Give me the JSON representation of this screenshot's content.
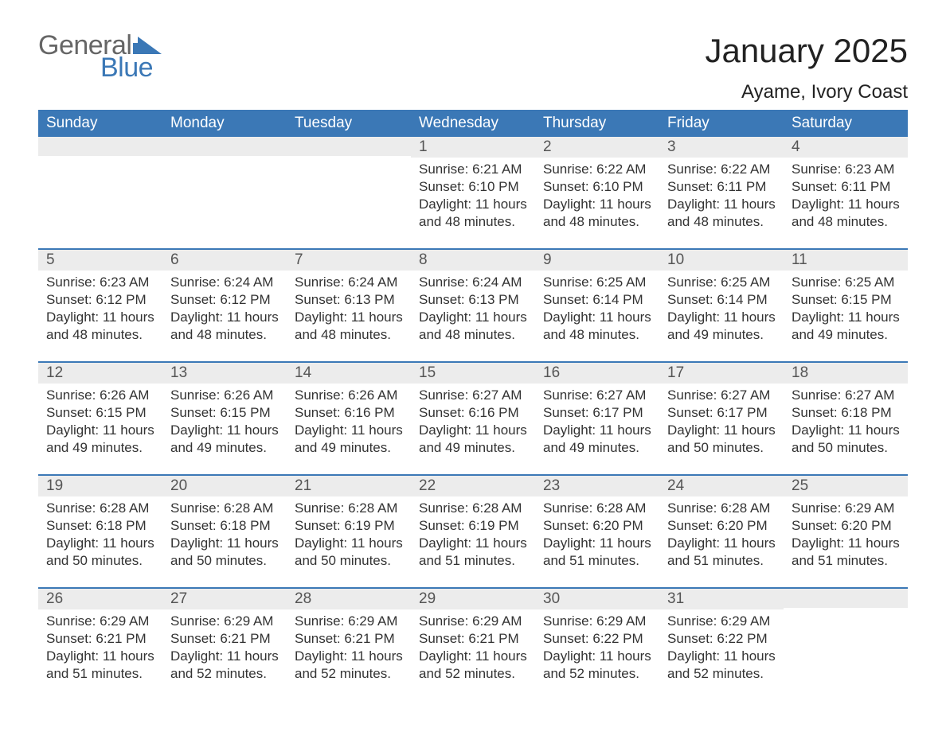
{
  "logo": {
    "text1": "General",
    "text2": "Blue",
    "flag_color": "#3b78b6",
    "text1_color": "#666666"
  },
  "title": "January 2025",
  "location": "Ayame, Ivory Coast",
  "weekday_labels": [
    "Sunday",
    "Monday",
    "Tuesday",
    "Wednesday",
    "Thursday",
    "Friday",
    "Saturday"
  ],
  "colors": {
    "header_bg": "#3b78b6",
    "header_fg": "#ffffff",
    "daynum_bg": "#ececec",
    "daynum_fg": "#555555",
    "body_fg": "#333333",
    "week_divider": "#3b78b6",
    "page_bg": "#ffffff"
  },
  "typography": {
    "title_fontsize": 42,
    "location_fontsize": 24,
    "weekday_fontsize": 19,
    "daynum_fontsize": 19,
    "body_fontsize": 17,
    "font_family": "Arial"
  },
  "label_prefixes": {
    "sunrise": "Sunrise: ",
    "sunset": "Sunset: ",
    "daylight": "Daylight: "
  },
  "weeks": [
    [
      {
        "n": "",
        "sunrise": "",
        "sunset": "",
        "daylight": ""
      },
      {
        "n": "",
        "sunrise": "",
        "sunset": "",
        "daylight": ""
      },
      {
        "n": "",
        "sunrise": "",
        "sunset": "",
        "daylight": ""
      },
      {
        "n": "1",
        "sunrise": "6:21 AM",
        "sunset": "6:10 PM",
        "daylight": "11 hours and 48 minutes."
      },
      {
        "n": "2",
        "sunrise": "6:22 AM",
        "sunset": "6:10 PM",
        "daylight": "11 hours and 48 minutes."
      },
      {
        "n": "3",
        "sunrise": "6:22 AM",
        "sunset": "6:11 PM",
        "daylight": "11 hours and 48 minutes."
      },
      {
        "n": "4",
        "sunrise": "6:23 AM",
        "sunset": "6:11 PM",
        "daylight": "11 hours and 48 minutes."
      }
    ],
    [
      {
        "n": "5",
        "sunrise": "6:23 AM",
        "sunset": "6:12 PM",
        "daylight": "11 hours and 48 minutes."
      },
      {
        "n": "6",
        "sunrise": "6:24 AM",
        "sunset": "6:12 PM",
        "daylight": "11 hours and 48 minutes."
      },
      {
        "n": "7",
        "sunrise": "6:24 AM",
        "sunset": "6:13 PM",
        "daylight": "11 hours and 48 minutes."
      },
      {
        "n": "8",
        "sunrise": "6:24 AM",
        "sunset": "6:13 PM",
        "daylight": "11 hours and 48 minutes."
      },
      {
        "n": "9",
        "sunrise": "6:25 AM",
        "sunset": "6:14 PM",
        "daylight": "11 hours and 48 minutes."
      },
      {
        "n": "10",
        "sunrise": "6:25 AM",
        "sunset": "6:14 PM",
        "daylight": "11 hours and 49 minutes."
      },
      {
        "n": "11",
        "sunrise": "6:25 AM",
        "sunset": "6:15 PM",
        "daylight": "11 hours and 49 minutes."
      }
    ],
    [
      {
        "n": "12",
        "sunrise": "6:26 AM",
        "sunset": "6:15 PM",
        "daylight": "11 hours and 49 minutes."
      },
      {
        "n": "13",
        "sunrise": "6:26 AM",
        "sunset": "6:15 PM",
        "daylight": "11 hours and 49 minutes."
      },
      {
        "n": "14",
        "sunrise": "6:26 AM",
        "sunset": "6:16 PM",
        "daylight": "11 hours and 49 minutes."
      },
      {
        "n": "15",
        "sunrise": "6:27 AM",
        "sunset": "6:16 PM",
        "daylight": "11 hours and 49 minutes."
      },
      {
        "n": "16",
        "sunrise": "6:27 AM",
        "sunset": "6:17 PM",
        "daylight": "11 hours and 49 minutes."
      },
      {
        "n": "17",
        "sunrise": "6:27 AM",
        "sunset": "6:17 PM",
        "daylight": "11 hours and 50 minutes."
      },
      {
        "n": "18",
        "sunrise": "6:27 AM",
        "sunset": "6:18 PM",
        "daylight": "11 hours and 50 minutes."
      }
    ],
    [
      {
        "n": "19",
        "sunrise": "6:28 AM",
        "sunset": "6:18 PM",
        "daylight": "11 hours and 50 minutes."
      },
      {
        "n": "20",
        "sunrise": "6:28 AM",
        "sunset": "6:18 PM",
        "daylight": "11 hours and 50 minutes."
      },
      {
        "n": "21",
        "sunrise": "6:28 AM",
        "sunset": "6:19 PM",
        "daylight": "11 hours and 50 minutes."
      },
      {
        "n": "22",
        "sunrise": "6:28 AM",
        "sunset": "6:19 PM",
        "daylight": "11 hours and 51 minutes."
      },
      {
        "n": "23",
        "sunrise": "6:28 AM",
        "sunset": "6:20 PM",
        "daylight": "11 hours and 51 minutes."
      },
      {
        "n": "24",
        "sunrise": "6:28 AM",
        "sunset": "6:20 PM",
        "daylight": "11 hours and 51 minutes."
      },
      {
        "n": "25",
        "sunrise": "6:29 AM",
        "sunset": "6:20 PM",
        "daylight": "11 hours and 51 minutes."
      }
    ],
    [
      {
        "n": "26",
        "sunrise": "6:29 AM",
        "sunset": "6:21 PM",
        "daylight": "11 hours and 51 minutes."
      },
      {
        "n": "27",
        "sunrise": "6:29 AM",
        "sunset": "6:21 PM",
        "daylight": "11 hours and 52 minutes."
      },
      {
        "n": "28",
        "sunrise": "6:29 AM",
        "sunset": "6:21 PM",
        "daylight": "11 hours and 52 minutes."
      },
      {
        "n": "29",
        "sunrise": "6:29 AM",
        "sunset": "6:21 PM",
        "daylight": "11 hours and 52 minutes."
      },
      {
        "n": "30",
        "sunrise": "6:29 AM",
        "sunset": "6:22 PM",
        "daylight": "11 hours and 52 minutes."
      },
      {
        "n": "31",
        "sunrise": "6:29 AM",
        "sunset": "6:22 PM",
        "daylight": "11 hours and 52 minutes."
      },
      {
        "n": "",
        "sunrise": "",
        "sunset": "",
        "daylight": ""
      }
    ]
  ]
}
